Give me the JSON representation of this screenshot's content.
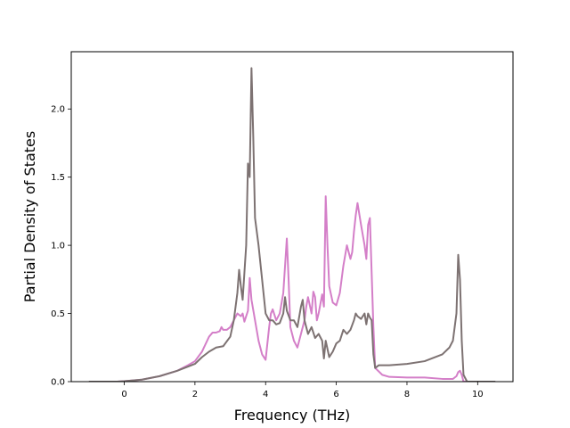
{
  "chart_data": {
    "type": "line",
    "title": "",
    "xlabel": "Frequency (THz)",
    "ylabel": "Partial Density of States",
    "xlim": [
      -1.5,
      11.0
    ],
    "ylim": [
      0.0,
      2.42
    ],
    "xticks": [
      0,
      2,
      4,
      6,
      8,
      10
    ],
    "xtick_labels": [
      "0",
      "2",
      "4",
      "6",
      "8",
      "10"
    ],
    "yticks": [
      0.0,
      0.5,
      1.0,
      1.5,
      2.0
    ],
    "ytick_labels": [
      "0.0",
      "0.5",
      "1.0",
      "1.5",
      "2.0"
    ],
    "grid": false,
    "legend": "none",
    "series": [
      {
        "color": "#d47fc8",
        "points": [
          [
            -1.0,
            0.0
          ],
          [
            -0.2,
            0.0
          ],
          [
            0.0,
            0.003
          ],
          [
            0.5,
            0.015
          ],
          [
            1.0,
            0.04
          ],
          [
            1.5,
            0.08
          ],
          [
            1.8,
            0.12
          ],
          [
            2.0,
            0.15
          ],
          [
            2.2,
            0.22
          ],
          [
            2.4,
            0.33
          ],
          [
            2.5,
            0.36
          ],
          [
            2.6,
            0.36
          ],
          [
            2.7,
            0.37
          ],
          [
            2.75,
            0.4
          ],
          [
            2.8,
            0.38
          ],
          [
            2.9,
            0.38
          ],
          [
            3.0,
            0.4
          ],
          [
            3.1,
            0.45
          ],
          [
            3.2,
            0.5
          ],
          [
            3.3,
            0.48
          ],
          [
            3.35,
            0.5
          ],
          [
            3.4,
            0.44
          ],
          [
            3.5,
            0.52
          ],
          [
            3.55,
            0.76
          ],
          [
            3.6,
            0.6
          ],
          [
            3.7,
            0.45
          ],
          [
            3.8,
            0.3
          ],
          [
            3.9,
            0.2
          ],
          [
            4.0,
            0.16
          ],
          [
            4.1,
            0.4
          ],
          [
            4.15,
            0.5
          ],
          [
            4.2,
            0.53
          ],
          [
            4.3,
            0.45
          ],
          [
            4.4,
            0.5
          ],
          [
            4.5,
            0.65
          ],
          [
            4.6,
            1.05
          ],
          [
            4.65,
            0.75
          ],
          [
            4.7,
            0.4
          ],
          [
            4.8,
            0.3
          ],
          [
            4.9,
            0.25
          ],
          [
            5.0,
            0.35
          ],
          [
            5.1,
            0.45
          ],
          [
            5.15,
            0.55
          ],
          [
            5.2,
            0.62
          ],
          [
            5.3,
            0.5
          ],
          [
            5.35,
            0.66
          ],
          [
            5.4,
            0.62
          ],
          [
            5.45,
            0.45
          ],
          [
            5.5,
            0.5
          ],
          [
            5.6,
            0.64
          ],
          [
            5.65,
            0.55
          ],
          [
            5.7,
            1.36
          ],
          [
            5.75,
            1.0
          ],
          [
            5.8,
            0.7
          ],
          [
            5.9,
            0.58
          ],
          [
            6.0,
            0.56
          ],
          [
            6.1,
            0.65
          ],
          [
            6.2,
            0.85
          ],
          [
            6.3,
            1.0
          ],
          [
            6.4,
            0.9
          ],
          [
            6.45,
            0.95
          ],
          [
            6.5,
            1.1
          ],
          [
            6.55,
            1.22
          ],
          [
            6.6,
            1.31
          ],
          [
            6.7,
            1.15
          ],
          [
            6.8,
            1.0
          ],
          [
            6.85,
            0.9
          ],
          [
            6.9,
            1.15
          ],
          [
            6.95,
            1.2
          ],
          [
            7.0,
            0.8
          ],
          [
            7.05,
            0.4
          ],
          [
            7.1,
            0.1
          ],
          [
            7.3,
            0.05
          ],
          [
            7.5,
            0.035
          ],
          [
            8.0,
            0.03
          ],
          [
            8.5,
            0.03
          ],
          [
            9.0,
            0.02
          ],
          [
            9.3,
            0.02
          ],
          [
            9.4,
            0.04
          ],
          [
            9.45,
            0.07
          ],
          [
            9.5,
            0.08
          ],
          [
            9.55,
            0.05
          ],
          [
            9.6,
            0.0
          ],
          [
            10.5,
            0.0
          ]
        ]
      },
      {
        "color": "#7d7272",
        "points": [
          [
            -1.0,
            0.0
          ],
          [
            -0.2,
            0.0
          ],
          [
            0.0,
            0.003
          ],
          [
            0.5,
            0.015
          ],
          [
            1.0,
            0.04
          ],
          [
            1.5,
            0.08
          ],
          [
            1.8,
            0.11
          ],
          [
            2.0,
            0.13
          ],
          [
            2.2,
            0.18
          ],
          [
            2.4,
            0.22
          ],
          [
            2.6,
            0.25
          ],
          [
            2.8,
            0.26
          ],
          [
            3.0,
            0.33
          ],
          [
            3.1,
            0.45
          ],
          [
            3.2,
            0.65
          ],
          [
            3.25,
            0.82
          ],
          [
            3.3,
            0.7
          ],
          [
            3.35,
            0.6
          ],
          [
            3.4,
            0.8
          ],
          [
            3.45,
            1.0
          ],
          [
            3.5,
            1.6
          ],
          [
            3.55,
            1.5
          ],
          [
            3.6,
            2.3
          ],
          [
            3.65,
            1.8
          ],
          [
            3.7,
            1.2
          ],
          [
            3.8,
            1.0
          ],
          [
            3.9,
            0.75
          ],
          [
            4.0,
            0.5
          ],
          [
            4.1,
            0.45
          ],
          [
            4.2,
            0.45
          ],
          [
            4.3,
            0.42
          ],
          [
            4.4,
            0.43
          ],
          [
            4.5,
            0.5
          ],
          [
            4.55,
            0.62
          ],
          [
            4.6,
            0.52
          ],
          [
            4.7,
            0.45
          ],
          [
            4.8,
            0.45
          ],
          [
            4.9,
            0.4
          ],
          [
            5.0,
            0.55
          ],
          [
            5.05,
            0.6
          ],
          [
            5.1,
            0.45
          ],
          [
            5.2,
            0.35
          ],
          [
            5.3,
            0.4
          ],
          [
            5.4,
            0.32
          ],
          [
            5.5,
            0.35
          ],
          [
            5.6,
            0.3
          ],
          [
            5.65,
            0.17
          ],
          [
            5.7,
            0.3
          ],
          [
            5.8,
            0.18
          ],
          [
            5.9,
            0.22
          ],
          [
            6.0,
            0.28
          ],
          [
            6.1,
            0.3
          ],
          [
            6.2,
            0.38
          ],
          [
            6.3,
            0.35
          ],
          [
            6.4,
            0.38
          ],
          [
            6.5,
            0.45
          ],
          [
            6.55,
            0.5
          ],
          [
            6.6,
            0.48
          ],
          [
            6.7,
            0.46
          ],
          [
            6.8,
            0.5
          ],
          [
            6.85,
            0.42
          ],
          [
            6.9,
            0.5
          ],
          [
            6.95,
            0.47
          ],
          [
            7.0,
            0.45
          ],
          [
            7.05,
            0.2
          ],
          [
            7.1,
            0.1
          ],
          [
            7.2,
            0.12
          ],
          [
            7.5,
            0.12
          ],
          [
            8.0,
            0.13
          ],
          [
            8.5,
            0.15
          ],
          [
            9.0,
            0.2
          ],
          [
            9.2,
            0.25
          ],
          [
            9.3,
            0.3
          ],
          [
            9.4,
            0.5
          ],
          [
            9.45,
            0.93
          ],
          [
            9.5,
            0.75
          ],
          [
            9.55,
            0.3
          ],
          [
            9.6,
            0.05
          ],
          [
            9.7,
            0.0
          ],
          [
            10.5,
            0.0
          ]
        ]
      }
    ]
  }
}
